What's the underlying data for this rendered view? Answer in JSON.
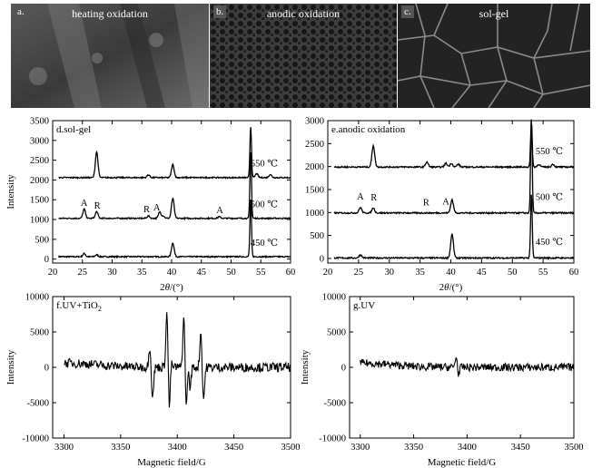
{
  "image_panels": [
    {
      "tag": "a.",
      "caption": "heating oxidation"
    },
    {
      "tag": "b.",
      "caption": "anodic oxidation"
    },
    {
      "tag": "c.",
      "caption": "sol-gel"
    }
  ],
  "chart_data": [
    {
      "id": "d",
      "type": "line",
      "title": "d.sol-gel",
      "xlabel": "2θ/(°)",
      "ylabel": "Intensity",
      "xlim": [
        20,
        60
      ],
      "ylim": [
        -100,
        3500
      ],
      "xticks": [
        20,
        25,
        30,
        35,
        40,
        45,
        50,
        55,
        60
      ],
      "yticks": [
        0,
        500,
        1000,
        1500,
        2000,
        2500,
        3000,
        3500
      ],
      "series": [
        {
          "name": "450 ℃",
          "baseline": 60,
          "peaks": [
            [
              25.3,
              80
            ],
            [
              27.4,
              50
            ],
            [
              40.2,
              350
            ],
            [
              53.3,
              1450
            ]
          ]
        },
        {
          "name": "500 ℃",
          "baseline": 1030,
          "peaks": [
            [
              25.3,
              230
            ],
            [
              27.4,
              170
            ],
            [
              36.1,
              60
            ],
            [
              38,
              160
            ],
            [
              38.6,
              60
            ],
            [
              40.2,
              510
            ],
            [
              48,
              40
            ],
            [
              53.3,
              1700
            ]
          ]
        },
        {
          "name": "550 ℃",
          "baseline": 2060,
          "peaks": [
            [
              27.4,
              650
            ],
            [
              36.1,
              70
            ],
            [
              40.2,
              330
            ],
            [
              53.3,
              1300
            ],
            [
              54.3,
              100
            ],
            [
              56.6,
              80
            ]
          ]
        }
      ],
      "annotations": [
        {
          "text": "A",
          "x": 25.3,
          "y": 1350
        },
        {
          "text": "R",
          "x": 27.5,
          "y": 1280
        },
        {
          "text": "R",
          "x": 35.8,
          "y": 1180
        },
        {
          "text": "A",
          "x": 37.5,
          "y": 1230
        },
        {
          "text": "A",
          "x": 48.1,
          "y": 1160
        }
      ]
    },
    {
      "id": "e",
      "type": "line",
      "title": "e.anodic oxidation",
      "xlabel": "2θ/(°)",
      "ylabel": "",
      "xlim": [
        20,
        60
      ],
      "ylim": [
        -100,
        3000
      ],
      "xticks": [
        20,
        25,
        30,
        35,
        40,
        45,
        50,
        55,
        60
      ],
      "yticks": [
        0,
        500,
        1000,
        1500,
        2000,
        2500,
        3000
      ],
      "series": [
        {
          "name": "450 ℃",
          "baseline": 10,
          "peaks": [
            [
              25.3,
              70
            ],
            [
              40.2,
              520
            ],
            [
              53.1,
              1400
            ]
          ]
        },
        {
          "name": "500 ℃",
          "baseline": 990,
          "peaks": [
            [
              25.3,
              120
            ],
            [
              27.4,
              110
            ],
            [
              40.2,
              290
            ],
            [
              53.1,
              2050
            ]
          ]
        },
        {
          "name": "550 ℃",
          "baseline": 1990,
          "peaks": [
            [
              27.4,
              470
            ],
            [
              36.1,
              110
            ],
            [
              39.2,
              80
            ],
            [
              40.1,
              80
            ],
            [
              41.2,
              60
            ],
            [
              53.1,
              1000
            ],
            [
              54.3,
              60
            ],
            [
              56.6,
              60
            ]
          ]
        }
      ],
      "annotations": [
        {
          "text": "A",
          "x": 25.3,
          "y": 1280
        },
        {
          "text": "R",
          "x": 27.5,
          "y": 1260
        },
        {
          "text": "R",
          "x": 36.0,
          "y": 1150
        },
        {
          "text": "A",
          "x": 39.2,
          "y": 1170
        }
      ]
    },
    {
      "id": "f",
      "type": "line",
      "title": "f.UV+TiO",
      "title_sub": "2",
      "xlabel": "Magnetic field/G",
      "ylabel": "Intensity",
      "xlim": [
        3290,
        3500
      ],
      "ylim": [
        -10000,
        10000
      ],
      "xticks": [
        3300,
        3350,
        3400,
        3450,
        3500
      ],
      "yticks": [
        -10000,
        -5000,
        0,
        5000,
        10000
      ],
      "noise_amp": 650,
      "signals": [
        [
          3377,
          3000,
          -4300
        ],
        [
          3392,
          7800,
          -8500
        ],
        [
          3395,
          3600,
          0
        ],
        [
          3407,
          7200,
          -8800
        ],
        [
          3410,
          4000,
          -3000
        ],
        [
          3422,
          5000,
          -4600
        ]
      ]
    },
    {
      "id": "g",
      "type": "line",
      "title": "g.UV",
      "xlabel": "Magnetic field/G",
      "ylabel": "Intensity",
      "xlim": [
        3290,
        3500
      ],
      "ylim": [
        -10000,
        10000
      ],
      "xticks": [
        3300,
        3350,
        3400,
        3450,
        3500
      ],
      "yticks": [
        -10000,
        -5000,
        0,
        5000,
        10000
      ],
      "noise_amp": 550,
      "signals": [
        [
          3391,
          1500,
          -1000
        ]
      ]
    }
  ]
}
